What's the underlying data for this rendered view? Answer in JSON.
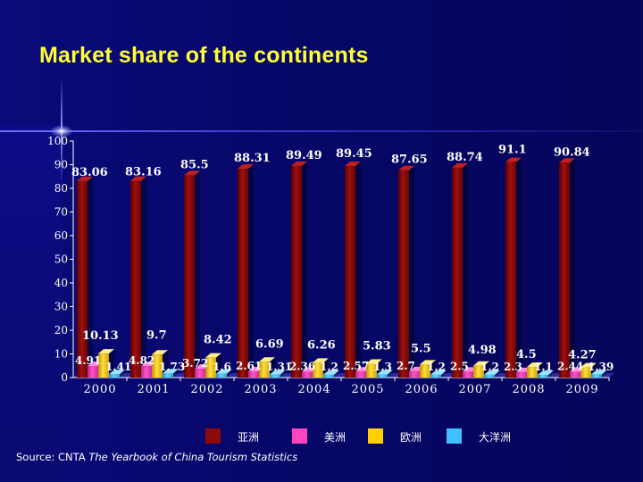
{
  "title": "Market share of the continents",
  "source": {
    "prefix": "Source: CNTA ",
    "publication": "The Yearbook of China Tourism Statistics"
  },
  "colors": {
    "asia": "#8b0a0a",
    "america": "#ff44c0",
    "europe": "#ffd000",
    "oceania": "#40c0ff",
    "axis_text": "#ffffff",
    "label_text": "#ffffff"
  },
  "chart_data": {
    "type": "bar",
    "title": "Market share of the continents",
    "xlabel": "",
    "ylabel": "",
    "ylim": [
      0,
      100
    ],
    "yticks": [
      0,
      10,
      20,
      30,
      40,
      50,
      60,
      70,
      80,
      90,
      100
    ],
    "grid": false,
    "legend": "bottom",
    "categories": [
      "2000",
      "2001",
      "2002",
      "2003",
      "2004",
      "2005",
      "2006",
      "2007",
      "2008",
      "2009"
    ],
    "series": [
      {
        "name": "亚洲",
        "values": [
          83.06,
          83.16,
          85.5,
          88.31,
          89.49,
          89.45,
          87.65,
          88.74,
          91.1,
          90.84
        ]
      },
      {
        "name": "美洲",
        "values": [
          4.91,
          4.82,
          3.72,
          2.61,
          2.36,
          2.57,
          2.7,
          2.5,
          2.3,
          2.44
        ]
      },
      {
        "name": "欧洲",
        "values": [
          10.13,
          9.7,
          8.42,
          6.69,
          6.26,
          5.83,
          5.5,
          4.98,
          4.5,
          4.27
        ]
      },
      {
        "name": "大洋洲",
        "values": [
          1.41,
          1.73,
          1.6,
          1.31,
          1.2,
          1.3,
          1.2,
          1.2,
          1.1,
          1.39
        ]
      }
    ],
    "data_labels": {
      "asia": [
        "83.06",
        "83.16",
        "85.5",
        "88.31",
        "89.49",
        "89.45",
        "87.65",
        "88.74",
        "91.1",
        "90.84"
      ],
      "america": [
        "4.91",
        "4.82",
        "3.72",
        "2.61",
        "2.36",
        "2.57",
        "2.7",
        "2.5",
        "2.3",
        "2.44"
      ],
      "europe": [
        "10.13",
        "9.7",
        "8.42",
        "6.69",
        "6.26",
        "5.83",
        "5.5",
        "4.98",
        "4.5",
        "4.27"
      ],
      "oceania": [
        "1.41",
        "1.73",
        "1.6",
        "1.31",
        "1.2",
        "1.3",
        "1.2",
        "1.2",
        "1.1",
        "1.39"
      ]
    }
  }
}
